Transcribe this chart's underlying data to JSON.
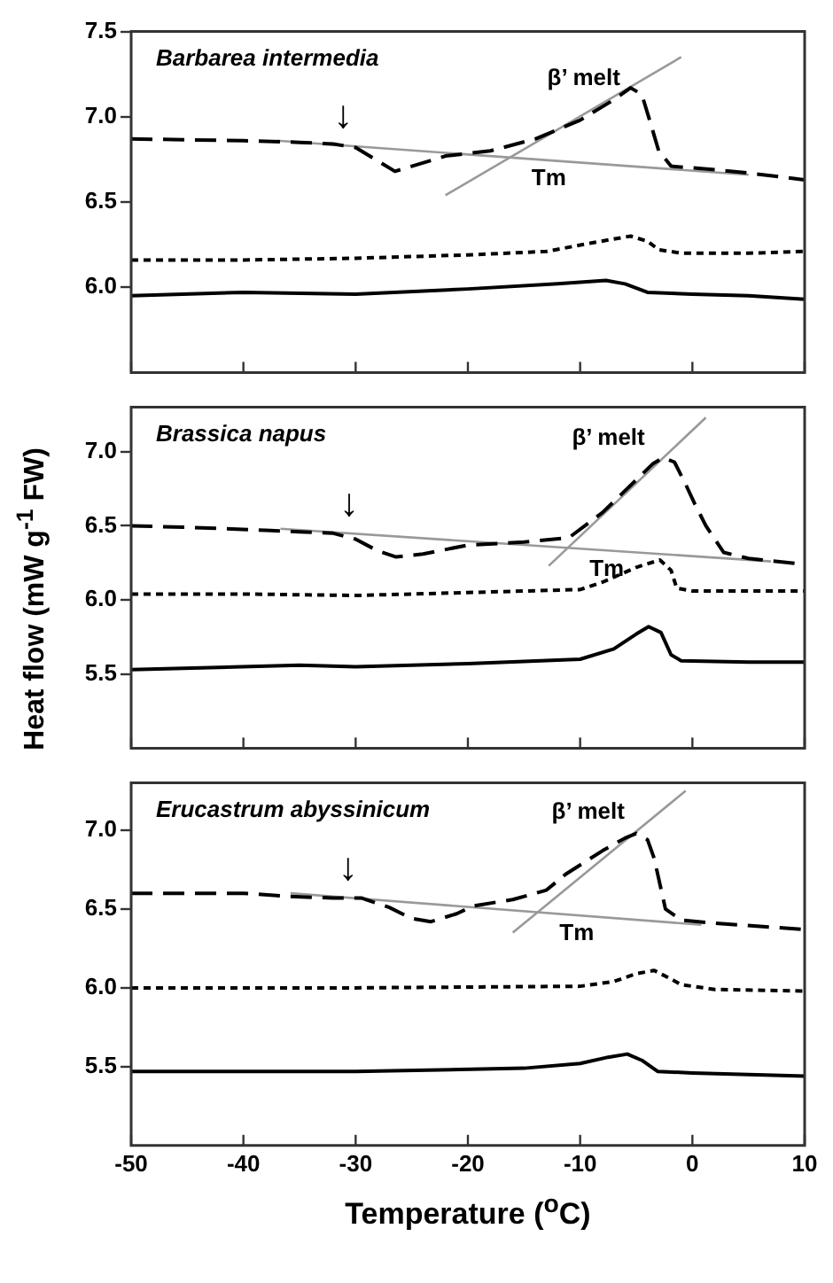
{
  "chart_data": [
    {
      "type": "line",
      "title": "Barbarea intermedia",
      "xlim": [
        -50,
        10
      ],
      "xticks": [
        -50,
        -40,
        -30,
        -20,
        -10,
        0,
        10
      ],
      "ylim": [
        5.5,
        7.5
      ],
      "yticks": [
        {
          "value": 6,
          "label": "6.0"
        },
        {
          "value": 6.5,
          "label": "6.5"
        },
        {
          "value": 7,
          "label": "7.0"
        },
        {
          "value": 7.5,
          "label": "7.5"
        }
      ],
      "tick_labels": "y",
      "grid": false,
      "legend": false,
      "marker": "none",
      "series": [
        {
          "color": "#000000",
          "line_style": "dashed",
          "x": [
            -50,
            -40,
            -35,
            -32,
            -30,
            -28,
            -26.5,
            -25,
            -22,
            -18,
            -14,
            -10,
            -7,
            -5.5,
            -4.5,
            -3.9,
            -3,
            -1.9,
            0,
            2,
            5,
            10
          ],
          "values": [
            6.87,
            6.86,
            6.85,
            6.84,
            6.82,
            6.74,
            6.68,
            6.71,
            6.77,
            6.8,
            6.87,
            6.98,
            7.1,
            7.17,
            7.13,
            7.0,
            6.8,
            6.71,
            6.7,
            6.69,
            6.67,
            6.63
          ]
        },
        {
          "color": "#000000",
          "line_style": "dotted",
          "x": [
            -50,
            -40,
            -30,
            -20,
            -13,
            -9,
            -5.5,
            -4,
            -3,
            -1,
            5,
            10
          ],
          "values": [
            6.16,
            6.16,
            6.17,
            6.19,
            6.21,
            6.26,
            6.3,
            6.27,
            6.22,
            6.2,
            6.2,
            6.21
          ]
        },
        {
          "color": "#000000",
          "line_style": "solid",
          "x": [
            -50,
            -40,
            -30,
            -20,
            -12,
            -7.7,
            -6,
            -4,
            0,
            5,
            10
          ],
          "values": [
            5.95,
            5.97,
            5.96,
            5.99,
            6.02,
            6.04,
            6.02,
            5.97,
            5.96,
            5.95,
            5.93
          ]
        },
        {
          "color": "#999999",
          "line_style": "solid",
          "x": [
            -37,
            5
          ],
          "values": [
            6.86,
            6.66
          ]
        },
        {
          "color": "#999999",
          "line_style": "solid",
          "x": [
            -22,
            -1
          ],
          "values": [
            6.54,
            7.35
          ]
        }
      ],
      "annotations": [
        "β’ melt",
        "Tm",
        "↓"
      ]
    },
    {
      "type": "line",
      "title": "Brassica napus",
      "ylabel": "Heat flow (mW g$^{-1}$ FW)",
      "xlim": [
        -50,
        10
      ],
      "xticks": [
        -50,
        -40,
        -30,
        -20,
        -10,
        0,
        10
      ],
      "ylim": [
        5.0,
        7.3
      ],
      "yticks": [
        {
          "value": 5.5,
          "label": "5.5"
        },
        {
          "value": 6,
          "label": "6.0"
        },
        {
          "value": 6.5,
          "label": "6.5"
        },
        {
          "value": 7,
          "label": "7.0"
        }
      ],
      "tick_labels": "y",
      "grid": false,
      "legend": false,
      "marker": "none",
      "series": [
        {
          "color": "#000000",
          "line_style": "dashed",
          "x": [
            -50,
            -45,
            -38,
            -35,
            -32,
            -30,
            -28,
            -26.4,
            -24,
            -20,
            -15,
            -11,
            -8,
            -5,
            -3.5,
            -2.6,
            -1.6,
            -0.6,
            0.2,
            1.2,
            2.8,
            5,
            10
          ],
          "values": [
            6.5,
            6.49,
            6.47,
            6.46,
            6.45,
            6.41,
            6.33,
            6.29,
            6.31,
            6.37,
            6.39,
            6.42,
            6.59,
            6.81,
            6.92,
            6.96,
            6.93,
            6.78,
            6.65,
            6.5,
            6.32,
            6.28,
            6.24
          ]
        },
        {
          "color": "#000000",
          "line_style": "dotted",
          "x": [
            -50,
            -40,
            -30,
            -20,
            -10,
            -8,
            -5,
            -2.9,
            -1.9,
            -1.4,
            0,
            10
          ],
          "values": [
            6.04,
            6.04,
            6.03,
            6.05,
            6.07,
            6.12,
            6.22,
            6.27,
            6.2,
            6.08,
            6.06,
            6.06
          ]
        },
        {
          "color": "#000000",
          "line_style": "solid",
          "x": [
            -50,
            -35,
            -30,
            -20,
            -10,
            -7,
            -5,
            -3.9,
            -2.8,
            -1.9,
            -1,
            5,
            10
          ],
          "values": [
            5.53,
            5.56,
            5.55,
            5.57,
            5.6,
            5.67,
            5.77,
            5.82,
            5.78,
            5.63,
            5.59,
            5.58,
            5.58
          ]
        },
        {
          "color": "#999999",
          "line_style": "solid",
          "x": [
            -36.7,
            7
          ],
          "values": [
            6.48,
            6.26
          ]
        },
        {
          "color": "#999999",
          "line_style": "solid",
          "x": [
            -12.8,
            1.2
          ],
          "values": [
            6.23,
            7.23
          ]
        }
      ],
      "annotations": [
        "β’ melt",
        "Tm",
        "↓"
      ]
    },
    {
      "type": "line",
      "title": "Erucastrum abyssinicum",
      "xlabel": "Temperature ($^{o}$C)",
      "xlim": [
        -50,
        10
      ],
      "xticks": [
        -50,
        -40,
        -30,
        -20,
        -10,
        0,
        10
      ],
      "ylim": [
        5.0,
        7.3
      ],
      "yticks": [
        {
          "value": 5.5,
          "label": "5.5"
        },
        {
          "value": 6,
          "label": "6.0"
        },
        {
          "value": 6.5,
          "label": "6.5"
        },
        {
          "value": 7,
          "label": "7.0"
        }
      ],
      "grid": false,
      "legend": false,
      "marker": "none",
      "series": [
        {
          "color": "#000000",
          "line_style": "dashed",
          "x": [
            -50,
            -40,
            -36,
            -32,
            -29.5,
            -27,
            -25,
            -23.3,
            -21,
            -19.5,
            -16,
            -13,
            -11.3,
            -8,
            -6,
            -5,
            -4,
            -3.4,
            -2.4,
            -1,
            2,
            10
          ],
          "values": [
            6.6,
            6.6,
            6.58,
            6.57,
            6.57,
            6.51,
            6.44,
            6.42,
            6.47,
            6.52,
            6.56,
            6.62,
            6.72,
            6.87,
            6.95,
            6.98,
            6.94,
            6.82,
            6.5,
            6.43,
            6.41,
            6.37
          ]
        },
        {
          "color": "#000000",
          "line_style": "dotted",
          "x": [
            -50,
            -30,
            -10,
            -7,
            -5,
            -3.4,
            -2,
            -1,
            2,
            10
          ],
          "values": [
            6.0,
            6.0,
            6.01,
            6.04,
            6.09,
            6.11,
            6.06,
            6.02,
            5.99,
            5.98
          ]
        },
        {
          "color": "#000000",
          "line_style": "solid",
          "x": [
            -50,
            -30,
            -15,
            -10,
            -7.5,
            -5.8,
            -4.5,
            -3.1,
            0,
            10
          ],
          "values": [
            5.47,
            5.47,
            5.49,
            5.52,
            5.56,
            5.58,
            5.54,
            5.47,
            5.46,
            5.44
          ]
        },
        {
          "color": "#999999",
          "line_style": "solid",
          "x": [
            -35.8,
            0.8
          ],
          "values": [
            6.6,
            6.4
          ]
        },
        {
          "color": "#999999",
          "line_style": "solid",
          "x": [
            -16,
            -0.6
          ],
          "values": [
            6.35,
            7.25
          ]
        }
      ],
      "annotations": [
        "β’ melt",
        "Tm",
        "↓"
      ]
    }
  ]
}
